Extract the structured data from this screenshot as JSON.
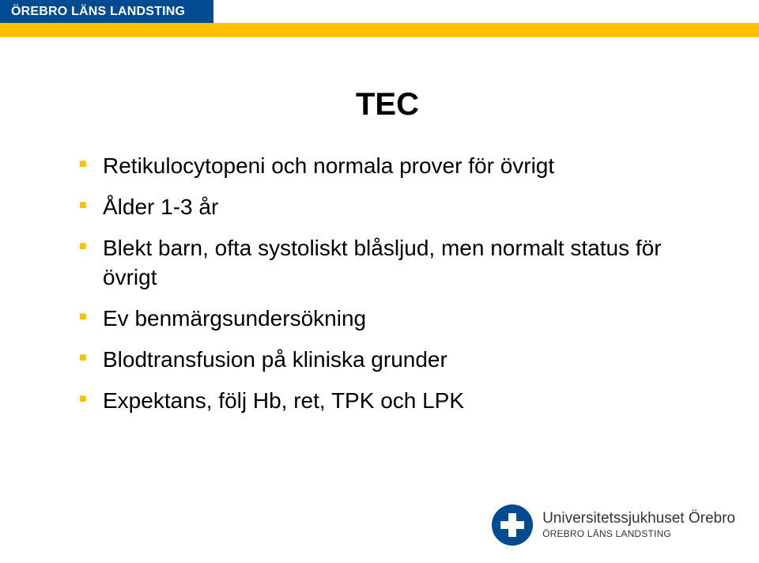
{
  "header": {
    "org": "ÖREBRO LÄNS LANDSTING",
    "blue_color": "#004b92",
    "yellow_color": "#ffc000"
  },
  "title": "TEC",
  "bullets": [
    "Retikulocytopeni och normala prover för övrigt",
    "Ålder 1-3 år",
    "Blekt barn, ofta systoliskt blåsljud, men normalt status för övrigt",
    "Ev benmärgsundersökning",
    "Blodtransfusion på kliniska grunder",
    "Expektans, följ Hb, ret, TPK och LPK"
  ],
  "footer": {
    "line1": "Universitetssjukhuset Örebro",
    "line2": "ÖREBRO LÄNS LANDSTING"
  },
  "style": {
    "title_fontsize": 40,
    "bullet_fontsize": 28,
    "bullet_marker_color": "#ffc000",
    "background": "#ffffff",
    "text_color": "#000000"
  }
}
